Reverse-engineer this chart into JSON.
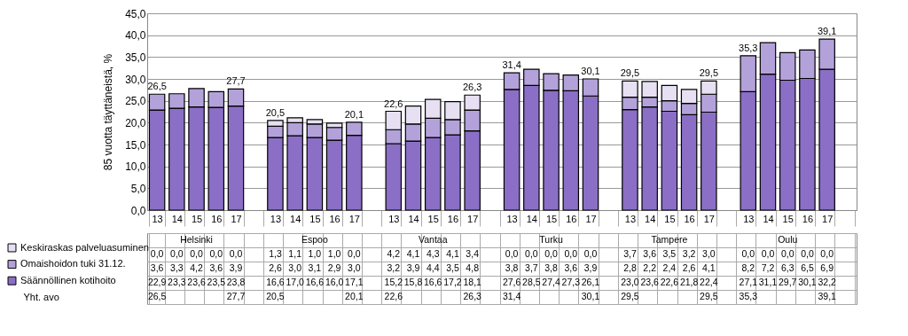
{
  "chart_data": {
    "type": "bar",
    "stacked": true,
    "ylabel": "85 vuotta täyttäneistä, %",
    "categories": [
      "13",
      "14",
      "15",
      "16",
      "17",
      null,
      "13",
      "14",
      "15",
      "16",
      "17",
      null,
      "13",
      "14",
      "15",
      "16",
      "17",
      null,
      "13",
      "14",
      "15",
      "16",
      "17",
      null,
      "13",
      "14",
      "15",
      "16",
      "17",
      null,
      "13",
      "14",
      "15",
      "16",
      "17",
      null
    ],
    "series": [
      {
        "name": "Säännöllinen kotihoito",
        "color": "#8b6fc6",
        "values": [
          22.9,
          23.3,
          23.6,
          23.5,
          23.8,
          null,
          16.6,
          17.0,
          16.6,
          16.0,
          17.1,
          null,
          15.2,
          15.8,
          16.6,
          17.2,
          18.1,
          null,
          27.6,
          28.5,
          27.4,
          27.3,
          26.1,
          null,
          23.0,
          23.6,
          22.6,
          21.8,
          22.4,
          null,
          27.1,
          31.1,
          29.7,
          30.1,
          32.2,
          null
        ],
        "value_labels": [
          "22,9",
          "23,3",
          "23,6",
          "23,5",
          "23,8",
          null,
          "16,6",
          "17,0",
          "16,6",
          "16,0",
          "17,1",
          null,
          "15,2",
          "15,8",
          "16,6",
          "17,2",
          "18,1",
          null,
          "27,6",
          "28,5",
          "27,4",
          "27,3",
          "26,1",
          null,
          "23,0",
          "23,6",
          "22,6",
          "21,8",
          "22,4",
          null,
          "27,1",
          "31,1",
          "29,7",
          "30,1",
          "32,2",
          null
        ]
      },
      {
        "name": "Omaishoidon tuki 31.12.",
        "color": "#b3a2da",
        "values": [
          3.6,
          3.3,
          4.2,
          3.6,
          3.9,
          null,
          2.6,
          3.0,
          3.1,
          2.9,
          3.0,
          null,
          3.2,
          3.9,
          4.4,
          3.5,
          4.8,
          null,
          3.8,
          3.7,
          3.8,
          3.6,
          3.9,
          null,
          2.8,
          2.2,
          2.4,
          2.6,
          4.1,
          null,
          8.2,
          7.2,
          6.3,
          6.5,
          6.9,
          null
        ],
        "value_labels": [
          "3,6",
          "3,3",
          "4,2",
          "3,6",
          "3,9",
          null,
          "2,6",
          "3,0",
          "3,1",
          "2,9",
          "3,0",
          null,
          "3,2",
          "3,9",
          "4,4",
          "3,5",
          "4,8",
          null,
          "3,8",
          "3,7",
          "3,8",
          "3,6",
          "3,9",
          null,
          "2,8",
          "2,2",
          "2,4",
          "2,6",
          "4,1",
          null,
          "8,2",
          "7,2",
          "6,3",
          "6,5",
          "6,9",
          null
        ]
      },
      {
        "name": "Keskiraskas palveluasuminen",
        "color": "#e6e0f2",
        "values": [
          0.0,
          0.0,
          0.0,
          0.0,
          0.0,
          null,
          1.3,
          1.1,
          1.0,
          1.0,
          0.0,
          null,
          4.2,
          4.1,
          4.3,
          4.1,
          3.4,
          null,
          0.0,
          0.0,
          0.0,
          0.0,
          0.0,
          null,
          3.7,
          3.6,
          3.5,
          3.2,
          3.0,
          null,
          0.0,
          0.0,
          0.0,
          0.0,
          0.0,
          null
        ],
        "value_labels": [
          "0,0",
          "0,0",
          "0,0",
          "0,0",
          "0,0",
          null,
          "1,3",
          "1,1",
          "1,0",
          "1,0",
          "0,0",
          null,
          "4,2",
          "4,1",
          "4,3",
          "4,1",
          "3,4",
          null,
          "0,0",
          "0,0",
          "0,0",
          "0,0",
          "0,0",
          null,
          "3,7",
          "3,6",
          "3,5",
          "3,2",
          "3,0",
          null,
          "0,0",
          "0,0",
          "0,0",
          "0,0",
          "0,0",
          null
        ]
      }
    ],
    "totals": [
      "26,5",
      null,
      null,
      null,
      "27,7",
      null,
      "20,5",
      null,
      null,
      null,
      "20,1",
      null,
      "22,6",
      null,
      null,
      null,
      "26,3",
      null,
      "31,4",
      null,
      null,
      null,
      "30,1",
      null,
      "29,5",
      null,
      null,
      null,
      "29,5",
      null,
      "35,3",
      null,
      null,
      null,
      "39,1",
      null
    ],
    "annotations": [
      "Helsinki",
      "Espoo",
      "Vantaa",
      "Turku",
      "Tampere",
      "Oulu",
      "Yht. avo"
    ],
    "ylim": [
      0,
      45
    ],
    "yticks": [
      {
        "value": 0,
        "label": "0,0"
      },
      {
        "value": 5,
        "label": "5,0"
      },
      {
        "value": 10,
        "label": "10,0"
      },
      {
        "value": 15,
        "label": "15,0"
      },
      {
        "value": 20,
        "label": "20,0"
      },
      {
        "value": 25,
        "label": "25,0"
      },
      {
        "value": 30,
        "label": "30,0"
      },
      {
        "value": 35,
        "label": "35,0"
      },
      {
        "value": 40,
        "label": "40,0"
      },
      {
        "value": 45,
        "label": "45,0"
      }
    ],
    "grid": "y",
    "legend": "bottom"
  }
}
